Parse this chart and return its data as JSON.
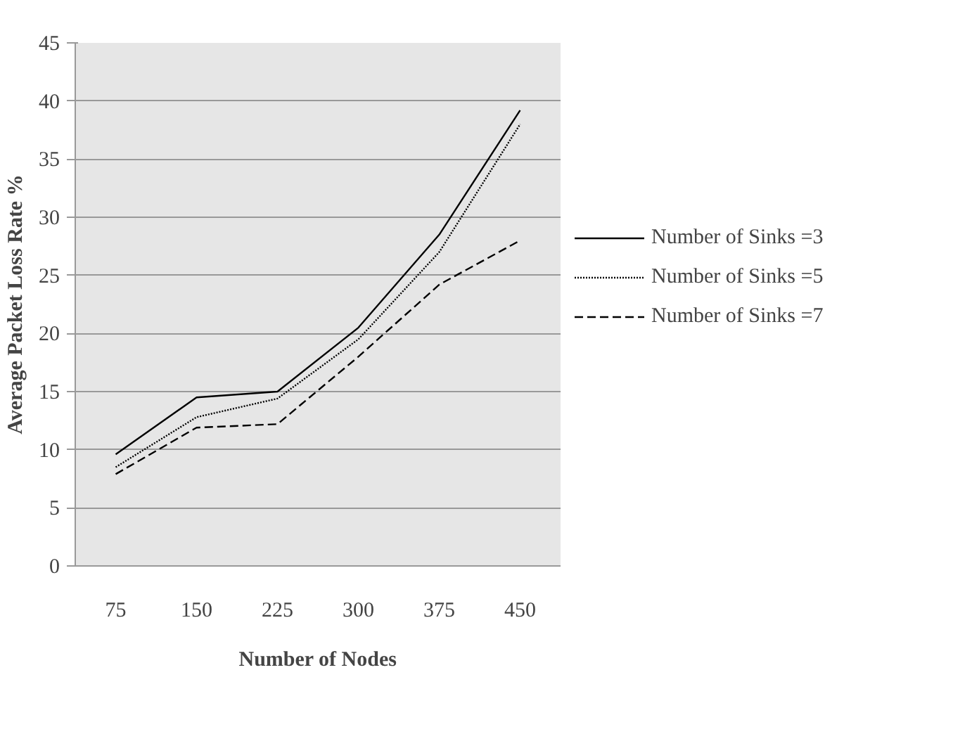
{
  "chart_data": {
    "type": "line",
    "xlabel": "Number of Nodes",
    "ylabel": "Average Packet Loss Rate %",
    "categories": [
      "75",
      "150",
      "225",
      "300",
      "375",
      "450"
    ],
    "series": [
      {
        "name": "Number of Sinks =3",
        "color": "#000000",
        "line_style": "solid",
        "values": [
          9.6,
          14.5,
          15.0,
          20.5,
          28.5,
          39.2
        ]
      },
      {
        "name": "Number of Sinks =5",
        "color": "#000000",
        "line_style": "dotted",
        "values": [
          8.5,
          12.8,
          14.4,
          19.5,
          27.0,
          38.0
        ]
      },
      {
        "name": "Number of Sinks =7",
        "color": "#000000",
        "line_style": "dashed",
        "values": [
          7.9,
          11.9,
          12.2,
          18.0,
          24.2,
          28.0
        ]
      }
    ],
    "ylim": [
      0,
      45
    ],
    "yticks": [
      0,
      5,
      10,
      15,
      20,
      25,
      30,
      35,
      40,
      45
    ],
    "grid": "y",
    "legend": "right",
    "marker": "none"
  }
}
